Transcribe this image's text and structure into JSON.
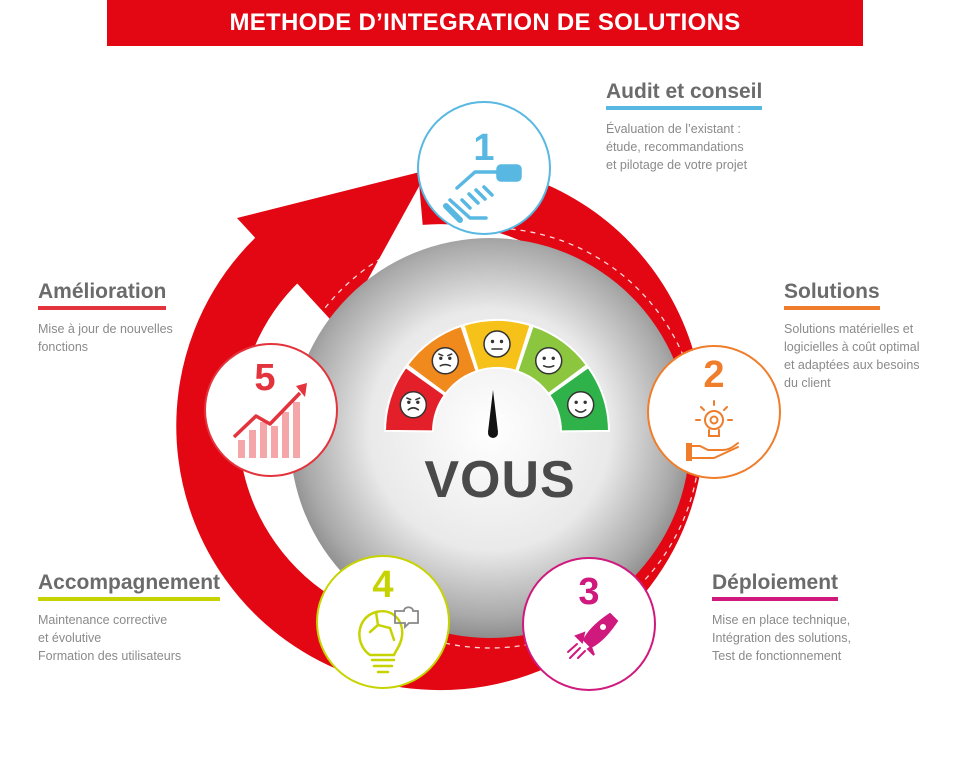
{
  "header": {
    "title": "METHODE D’INTEGRATION DE SOLUTIONS"
  },
  "center": {
    "label": "VOUS"
  },
  "colors": {
    "brand_red": "#e30613",
    "step1": "#58b8e2",
    "step2": "#ef7d2b",
    "step3": "#d0197d",
    "step4": "#c7d300",
    "step5": "#e3333c"
  },
  "steps": [
    {
      "number": "1",
      "title": "Audit et conseil",
      "description": [
        "Évaluation de l’existant :",
        "étude, recommandations",
        "et pilotage de votre projet"
      ],
      "icon": "handshake-icon"
    },
    {
      "number": "2",
      "title": "Solutions",
      "description": [
        "Solutions matérielles et",
        "logicielles à coût optimal",
        "et adaptées aux besoins",
        "du client"
      ],
      "icon": "hand-lightbulb-icon"
    },
    {
      "number": "3",
      "title": "Déploiement",
      "description": [
        "Mise en place technique,",
        "Intégration des solutions,",
        "Test de fonctionnement"
      ],
      "icon": "rocket-icon"
    },
    {
      "number": "4",
      "title": "Accompagnement",
      "description": [
        "Maintenance corrective",
        "et évolutive",
        "Formation des utilisateurs"
      ],
      "icon": "puzzle-lightbulb-icon"
    },
    {
      "number": "5",
      "title": "Amélioration",
      "description": [
        "Mise à jour  de nouvelles",
        "fonctions"
      ],
      "icon": "growth-chart-icon"
    }
  ],
  "gauge": {
    "segments": [
      {
        "color": "#e3202a",
        "mood": "angry"
      },
      {
        "color": "#f08a1c",
        "mood": "frown"
      },
      {
        "color": "#f6c21a",
        "mood": "neutral"
      },
      {
        "color": "#8cc63f",
        "mood": "slight-smile"
      },
      {
        "color": "#2fb24a",
        "mood": "happy"
      }
    ]
  }
}
